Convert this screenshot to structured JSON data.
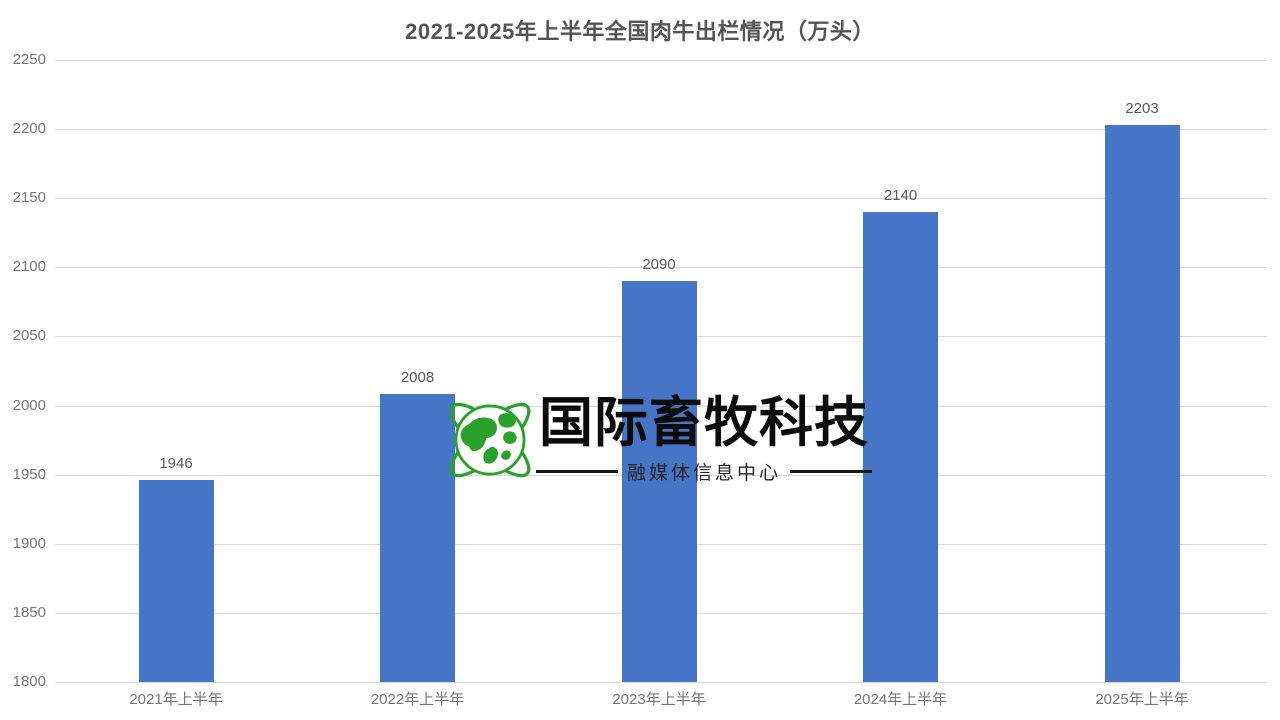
{
  "title": "2021-2025年上半年全国肉牛出栏情况（万头）",
  "chart_data": {
    "type": "bar",
    "title": "2021-2025年上半年全国肉牛出栏情况（万头）",
    "categories": [
      "2021年上半年",
      "2022年上半年",
      "2023年上半年",
      "2024年上半年",
      "2025年上半年"
    ],
    "values": [
      1946,
      2008,
      2090,
      2140,
      2203
    ],
    "xlabel": "",
    "ylabel": "",
    "ylim": [
      1800,
      2250
    ],
    "yticks": [
      1800,
      1850,
      1900,
      1950,
      2000,
      2050,
      2100,
      2150,
      2200,
      2250
    ],
    "grid": true,
    "legend": "none",
    "bar_color": "#4674c6",
    "gridline_color": "#d9d9d9",
    "value_label_color": "#595959",
    "axis_label_color": "#757575",
    "title_color": "#545454"
  },
  "watermark": {
    "brand": "国际畜牧科技",
    "subtitle": "融媒体信息中心",
    "globe_icon": "globe-with-orbits",
    "globe_color": "#2aa12b",
    "text_color": "#0b0b0b"
  }
}
